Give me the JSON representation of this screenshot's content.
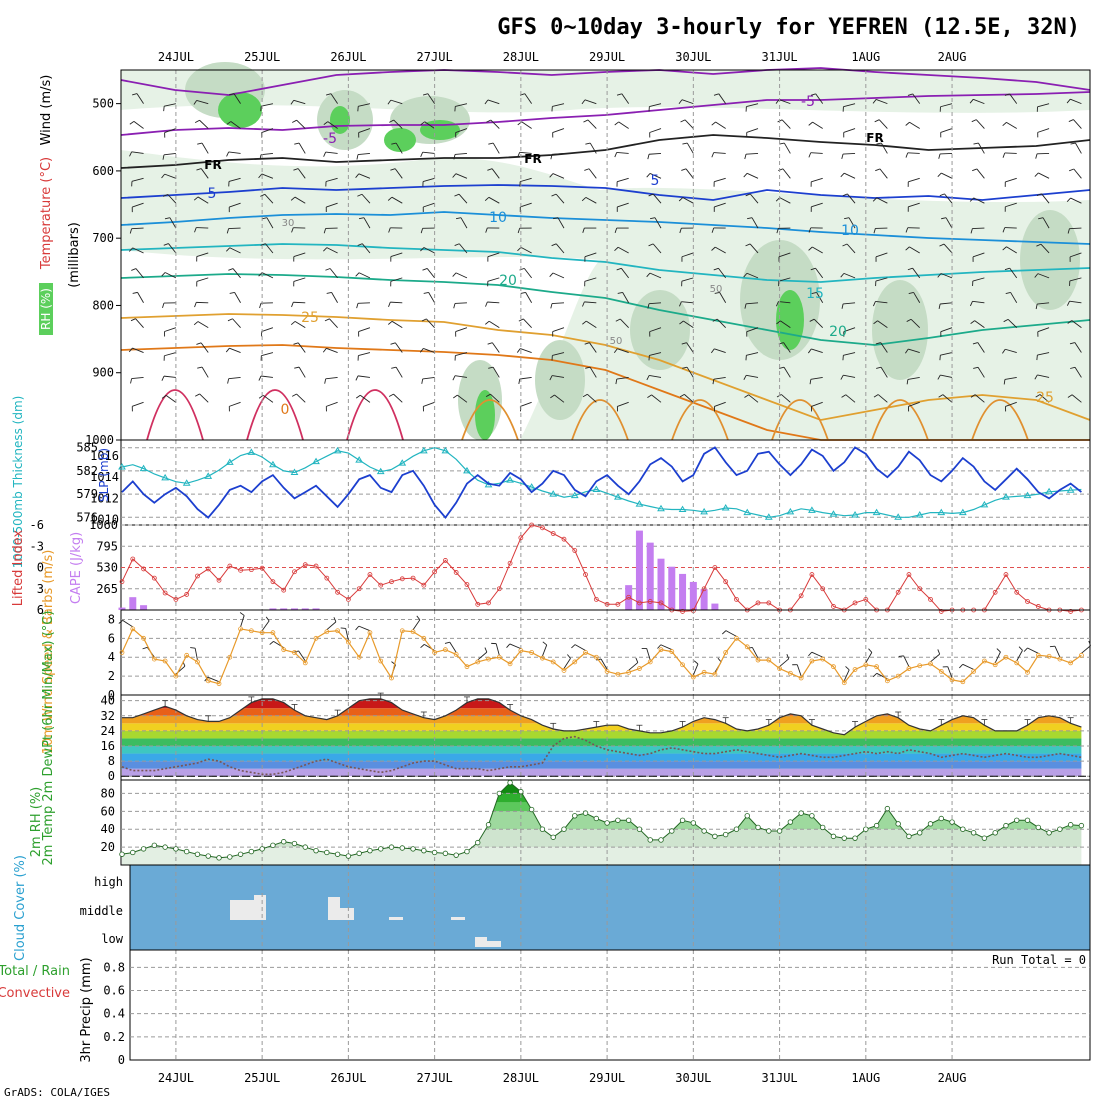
{
  "title": "GFS 0~10day 3-hourly for YEFREN (12.5E, 32N)",
  "credit": "GrADS: COLA/IGES",
  "dates": [
    "24JUL",
    "25JUL",
    "26JUL",
    "27JUL",
    "28JUL",
    "29JUL",
    "30JUL",
    "31JUL",
    "1AUG",
    "2AUG"
  ],
  "colors": {
    "rh_green": "#5ccf5c",
    "rh_light": "#e6f2e6",
    "rh_mid": "#c5dcc5",
    "rh_dark": "#9fb39f",
    "slp": "#1c3fcf",
    "thickness": "#22b5c0",
    "cape_bar": "#c47ef0",
    "lifted": "#d83a3a",
    "wind": "#e89a2a",
    "cloud": "#6aaad6",
    "rh2m": "#2ea02e",
    "precip": "#2a8a2a"
  },
  "chart_data": [
    {
      "id": "upper-air",
      "type": "heatmap",
      "ylabel": "(millibars)",
      "legend_labels": {
        "rh": "RH (%)",
        "temp": "Temperature (°C)",
        "wind": "Wind (m/s)"
      },
      "yticks": [
        500,
        600,
        700,
        800,
        900,
        1000
      ],
      "ylim": [
        1000,
        450
      ],
      "isotherm_labels": [
        "-5",
        "-5",
        "5",
        "5",
        "10",
        "10",
        "15",
        "20",
        "20",
        "25",
        "0",
        "25"
      ],
      "freezing_label": "FR",
      "rh_labels": [
        "30",
        "50",
        "50"
      ]
    },
    {
      "id": "slp-thickness",
      "type": "line",
      "left_label": "1000-500mb Thickness (dm)",
      "right_label": "SLP (mb)",
      "left_ticks": [
        576,
        579,
        582,
        585
      ],
      "left_lim": [
        575,
        586
      ],
      "right_ticks": [
        1010,
        1012,
        1014,
        1016
      ],
      "right_lim": [
        1009.5,
        1017.5
      ],
      "series": [
        {
          "name": "Thickness (dm)",
          "axis": "left",
          "values": [
            582.5,
            582.8,
            582.3,
            581.6,
            581.1,
            580.6,
            580.4,
            580.8,
            581.3,
            582.1,
            583.1,
            584.0,
            584.4,
            583.8,
            582.8,
            582.0,
            581.8,
            582.4,
            583.2,
            583.9,
            584.6,
            584.3,
            583.4,
            582.5,
            581.9,
            582.2,
            583.0,
            583.9,
            584.6,
            585.0,
            584.6,
            583.5,
            582.0,
            580.8,
            580.2,
            580.4,
            580.8,
            580.4,
            579.9,
            579.4,
            579.0,
            578.6,
            578.8,
            579.3,
            579.6,
            579.1,
            578.6,
            578.1,
            577.7,
            577.4,
            577.1,
            577.0,
            577.0,
            576.9,
            576.7,
            576.9,
            577.2,
            577.1,
            576.6,
            576.3,
            576.0,
            576.2,
            576.7,
            577.1,
            576.9,
            576.6,
            576.4,
            576.2,
            576.3,
            576.6,
            576.6,
            576.3,
            576.0,
            576.0,
            576.3,
            576.6,
            576.6,
            576.5,
            576.6,
            577.0,
            577.6,
            578.2,
            578.6,
            578.7,
            578.8,
            579.0,
            579.3,
            579.4,
            579.5,
            579.6
          ]
        },
        {
          "name": "SLP (mb)",
          "axis": "right",
          "values": [
            1012.6,
            1013.6,
            1012.4,
            1011.6,
            1012.4,
            1013.0,
            1012.2,
            1011.0,
            1010.2,
            1011.4,
            1012.8,
            1013.2,
            1012.6,
            1013.6,
            1014.2,
            1013.0,
            1012.0,
            1012.6,
            1013.2,
            1012.2,
            1011.2,
            1012.4,
            1013.8,
            1014.2,
            1013.0,
            1012.6,
            1014.2,
            1014.6,
            1013.2,
            1011.4,
            1010.2,
            1011.6,
            1013.4,
            1014.2,
            1013.4,
            1013.2,
            1014.4,
            1013.8,
            1012.6,
            1013.4,
            1014.6,
            1014.2,
            1012.8,
            1012.2,
            1013.6,
            1014.2,
            1013.2,
            1012.4,
            1013.6,
            1015.2,
            1015.8,
            1015.0,
            1013.6,
            1014.2,
            1016.2,
            1016.8,
            1015.4,
            1014.2,
            1014.6,
            1016.2,
            1016.4,
            1015.2,
            1014.2,
            1015.2,
            1016.6,
            1016.0,
            1014.6,
            1015.4,
            1016.8,
            1016.2,
            1014.8,
            1014.0,
            1015.0,
            1016.4,
            1015.6,
            1014.2,
            1013.6,
            1014.6,
            1015.8,
            1015.0,
            1013.6,
            1012.8,
            1013.8,
            1014.8,
            1013.8,
            1012.6,
            1012.0,
            1012.8,
            1013.4,
            1012.6
          ]
        }
      ]
    },
    {
      "id": "instability",
      "type": "bar",
      "left_label": "Lifted Index",
      "right_label": "CAPE (J/kg)",
      "left_ticks": [
        "6",
        "3",
        "0",
        "-3",
        "-6"
      ],
      "left_lim": [
        6,
        -6
      ],
      "right_ticks": [
        265,
        530,
        795,
        1060
      ],
      "right_lim": [
        0,
        1060
      ],
      "series": [
        {
          "name": "CAPE (J/kg)",
          "axis": "right",
          "kind": "bar",
          "values": [
            30,
            160,
            60,
            0,
            0,
            0,
            0,
            0,
            0,
            0,
            0,
            0,
            0,
            0,
            20,
            20,
            20,
            20,
            20,
            0,
            0,
            0,
            0,
            0,
            0,
            0,
            0,
            0,
            0,
            0,
            0,
            0,
            0,
            0,
            0,
            0,
            0,
            0,
            0,
            0,
            0,
            0,
            0,
            0,
            0,
            0,
            0,
            310,
            990,
            840,
            640,
            540,
            450,
            350,
            260,
            80,
            0,
            0,
            0,
            0,
            0,
            0,
            0,
            0,
            0,
            0,
            0,
            0,
            0,
            0,
            0,
            0,
            0,
            0,
            0,
            0,
            0,
            0,
            0,
            0,
            0,
            0,
            0,
            0,
            0,
            0,
            0,
            0,
            0,
            0
          ]
        },
        {
          "name": "Lifted Index",
          "axis": "left",
          "kind": "line",
          "values": [
            2.0,
            -1.2,
            0.2,
            1.5,
            3.6,
            4.5,
            3.8,
            1.2,
            0.2,
            1.8,
            -0.2,
            0.4,
            0.3,
            0.1,
            2.0,
            3.2,
            0.6,
            -0.4,
            -0.2,
            1.5,
            3.5,
            4.5,
            3.0,
            1.0,
            2.5,
            2.0,
            1.6,
            1.5,
            2.5,
            0.6,
            -1.0,
            0.7,
            2.4,
            5.2,
            5.0,
            3.0,
            -0.6,
            -4.2,
            -6.0,
            -5.6,
            -4.8,
            -4.0,
            -2.4,
            1.0,
            4.5,
            5.2,
            5.2,
            4.2,
            5.0,
            4.8,
            5.0,
            6.0,
            6.2,
            6.1,
            3.0,
            0.0,
            2.0,
            4.5,
            6.0,
            5.0,
            5.0,
            6.0,
            6.0,
            4.0,
            1.0,
            3.0,
            5.5,
            6.0,
            5.0,
            4.5,
            6.0,
            6.0,
            3.5,
            1.0,
            3.0,
            4.5,
            6.2,
            6.0,
            6.0,
            6.0,
            6.0,
            3.5,
            1.0,
            3.5,
            4.8,
            5.5,
            6.0,
            6.0,
            6.2,
            6.0
          ]
        }
      ]
    },
    {
      "id": "wind10m",
      "type": "line",
      "left_label": "10m Wind Speed & Barbs (m/s)",
      "yticks": [
        0,
        2,
        4,
        6,
        8
      ],
      "ylim": [
        0,
        9
      ],
      "series": [
        {
          "name": "10m wind speed",
          "values": [
            4.5,
            7.0,
            6.0,
            3.8,
            3.6,
            2.0,
            4.2,
            3.5,
            1.5,
            1.2,
            4.0,
            7.0,
            6.8,
            6.6,
            6.6,
            4.8,
            4.5,
            3.4,
            6.0,
            6.7,
            6.8,
            5.6,
            4.0,
            6.6,
            3.6,
            1.8,
            6.8,
            6.7,
            6.0,
            4.5,
            4.8,
            4.3,
            3.0,
            3.5,
            3.8,
            4.0,
            3.3,
            4.7,
            4.5,
            3.9,
            3.5,
            2.6,
            3.5,
            4.5,
            4.0,
            2.5,
            2.2,
            2.4,
            2.8,
            3.5,
            4.8,
            4.6,
            3.2,
            1.9,
            2.4,
            2.2,
            4.5,
            6.0,
            5.1,
            3.7,
            3.7,
            2.8,
            2.3,
            1.8,
            3.6,
            3.8,
            3.0,
            1.3,
            2.7,
            3.2,
            3.0,
            1.5,
            2.0,
            2.8,
            3.1,
            3.3,
            2.5,
            1.6,
            1.4,
            2.5,
            3.6,
            3.2,
            4.0,
            3.4,
            2.4,
            4.2,
            4.1,
            3.8,
            3.4,
            4.2
          ]
        }
      ]
    },
    {
      "id": "temp2m",
      "type": "area",
      "left_label": "2m Temp 2m DewPt (6hr Min/Max) (°C)",
      "yticks": [
        0,
        8,
        16,
        24,
        32,
        40
      ],
      "ylim": [
        -2,
        43
      ],
      "series": [
        {
          "name": "2m Temp",
          "values": [
            31,
            31,
            33,
            35,
            37,
            35,
            32,
            30,
            29,
            29,
            31,
            35,
            39,
            41,
            41,
            39,
            35,
            32,
            31,
            30,
            32,
            36,
            40,
            41,
            41,
            39,
            35,
            33,
            31,
            30,
            32,
            35,
            39,
            41,
            41,
            39,
            35,
            32,
            30,
            27,
            25,
            24,
            24,
            25,
            26,
            27,
            27,
            25,
            24,
            23,
            23,
            24,
            26,
            29,
            31,
            30,
            28,
            25,
            24,
            25,
            27,
            31,
            33,
            32,
            27,
            25,
            23,
            22,
            26,
            29,
            32,
            33,
            31,
            27,
            25,
            24,
            27,
            30,
            32,
            31,
            27,
            24,
            24,
            24,
            27,
            31,
            32,
            31,
            28,
            26
          ]
        },
        {
          "name": "2m DewPt",
          "values": [
            5,
            3,
            3,
            3,
            4,
            5,
            6,
            7,
            9,
            8,
            5,
            3,
            2,
            1,
            1,
            2,
            4,
            6,
            8,
            9,
            7,
            5,
            4,
            3,
            2,
            3,
            5,
            7,
            8,
            8,
            6,
            4,
            4,
            4,
            3,
            4,
            5,
            5,
            6,
            7,
            16,
            20,
            21,
            19,
            16,
            14,
            13,
            12,
            11,
            12,
            14,
            15,
            14,
            13,
            12,
            12,
            13,
            14,
            13,
            12,
            11,
            10,
            11,
            12,
            11,
            10,
            10,
            11,
            12,
            13,
            12,
            13,
            12,
            14,
            13,
            12,
            10,
            11,
            12,
            11,
            10,
            11,
            12,
            11,
            10,
            10,
            11,
            12,
            11,
            10
          ]
        }
      ]
    },
    {
      "id": "rh2m",
      "type": "area",
      "left_label": "2m RH (%)",
      "yticks": [
        20,
        40,
        60,
        80
      ],
      "ylim": [
        0,
        95
      ],
      "series": [
        {
          "name": "2m RH",
          "values": [
            12,
            14,
            18,
            22,
            20,
            18,
            15,
            12,
            10,
            8,
            9,
            12,
            15,
            18,
            22,
            26,
            24,
            20,
            16,
            14,
            12,
            10,
            13,
            16,
            18,
            20,
            19,
            18,
            16,
            14,
            13,
            11,
            15,
            25,
            45,
            80,
            92,
            82,
            62,
            40,
            31,
            40,
            55,
            58,
            52,
            47,
            50,
            50,
            40,
            28,
            28,
            38,
            50,
            47,
            38,
            32,
            34,
            40,
            55,
            42,
            38,
            38,
            48,
            58,
            55,
            42,
            32,
            30,
            30,
            40,
            44,
            63,
            46,
            32,
            36,
            46,
            52,
            48,
            40,
            36,
            30,
            36,
            44,
            50,
            50,
            42,
            36,
            40,
            45,
            44
          ]
        }
      ]
    },
    {
      "id": "cloud-cover",
      "type": "heatmap",
      "left_label": "Cloud Cover (%)",
      "yticks": [
        "high",
        "middle",
        "low"
      ]
    },
    {
      "id": "precip",
      "type": "bar",
      "left_label": "Total / Rain Convective",
      "axis_label": "3hr Precip (mm)",
      "yticks": [
        0,
        0.2,
        0.4,
        0.6,
        0.8
      ],
      "ylim": [
        0,
        0.95
      ],
      "run_total": "Run Total = 0",
      "values": []
    }
  ]
}
